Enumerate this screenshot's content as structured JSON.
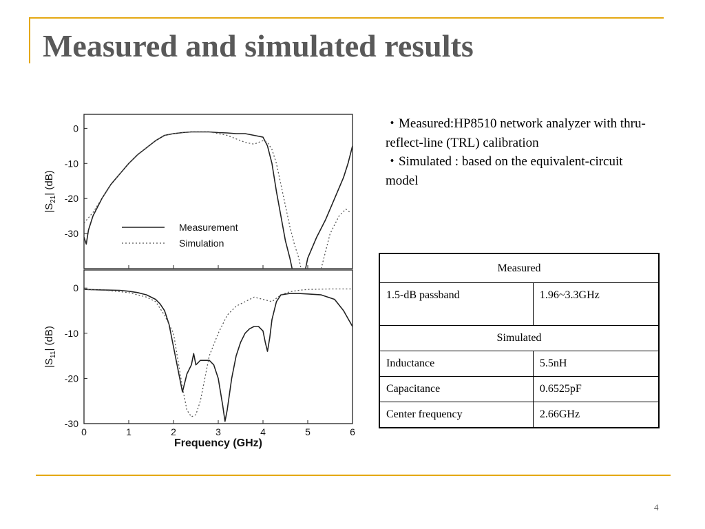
{
  "slide": {
    "title": "Measured and simulated results",
    "page_number": "4",
    "accent_color": "#e4a812"
  },
  "notes": [
    "・Measured:HP8510 network analyzer with thru-reflect-line (TRL) calibration",
    "・Simulated : based on the equivalent-circuit model"
  ],
  "table": {
    "measured_header": "Measured",
    "passband_label": "1.5-dB passband",
    "passband_value": "1.96~3.3GHz",
    "simulated_header": "Simulated",
    "rows": [
      {
        "label": "Inductance",
        "value": "5.5nH"
      },
      {
        "label": "Capacitance",
        "value": "0.6525pF"
      },
      {
        "label": "Center frequency",
        "value": "2.66GHz"
      }
    ]
  },
  "chart_data": [
    {
      "type": "line",
      "title": "",
      "xlabel": "",
      "ylabel": "|S21| (dB)",
      "xlim": [
        0,
        6
      ],
      "ylim": [
        -40,
        4
      ],
      "yticks": [
        0,
        -10,
        -20,
        -30
      ],
      "legend": {
        "position": "bottom-left",
        "entries": [
          "Measurement",
          "Simulation"
        ]
      },
      "series": [
        {
          "name": "Measurement",
          "style": "solid",
          "x": [
            0,
            0.05,
            0.1,
            0.2,
            0.4,
            0.6,
            0.8,
            1.0,
            1.2,
            1.4,
            1.6,
            1.8,
            2.0,
            2.2,
            2.4,
            2.6,
            2.8,
            3.0,
            3.2,
            3.4,
            3.6,
            3.8,
            4.0,
            4.1,
            4.2,
            4.3,
            4.4,
            4.5,
            4.6,
            4.65
          ],
          "y": [
            -31,
            -33,
            -29,
            -25,
            -20,
            -16,
            -13,
            -10,
            -7.5,
            -5.5,
            -3.5,
            -2,
            -1.5,
            -1.2,
            -1.0,
            -1.0,
            -1.0,
            -1.2,
            -1.3,
            -1.5,
            -1.5,
            -2,
            -2.5,
            -5,
            -10,
            -18,
            -25,
            -32,
            -37,
            -40
          ]
        },
        {
          "name": "Measurement",
          "style": "solid",
          "x": [
            4.95,
            5.0,
            5.2,
            5.4,
            5.6,
            5.8,
            5.9,
            6.0
          ],
          "y": [
            -40,
            -37,
            -31,
            -26,
            -20,
            -14,
            -10,
            -5
          ]
        },
        {
          "name": "Simulation",
          "style": "dotted",
          "x": [
            0,
            0.2,
            0.4,
            0.6,
            0.8,
            1.0,
            1.2,
            1.4,
            1.6,
            1.8,
            2.0,
            2.2,
            2.4,
            2.6,
            2.8,
            3.0,
            3.2,
            3.4,
            3.6,
            3.8,
            4.0,
            4.1,
            4.2,
            4.3,
            4.4,
            4.5,
            4.6,
            4.7,
            4.8,
            4.85
          ],
          "y": [
            -27,
            -24,
            -20,
            -16,
            -13,
            -10,
            -7.5,
            -5.5,
            -3.5,
            -2,
            -1.5,
            -1.2,
            -1.0,
            -1.0,
            -1.0,
            -1.5,
            -2,
            -3,
            -4,
            -4.5,
            -3.5,
            -4,
            -6,
            -10,
            -16,
            -22,
            -28,
            -33,
            -37,
            -40
          ]
        },
        {
          "name": "Simulation",
          "style": "dotted",
          "x": [
            5.3,
            5.5,
            5.7,
            5.85,
            5.95
          ],
          "y": [
            -40,
            -30,
            -25,
            -23,
            -24
          ]
        }
      ]
    },
    {
      "type": "line",
      "title": "",
      "xlabel": "Frequency (GHz)",
      "ylabel": "|S11| (dB)",
      "xlim": [
        0,
        6
      ],
      "xticks": [
        0,
        1,
        2,
        3,
        4,
        5,
        6
      ],
      "ylim": [
        -30,
        4
      ],
      "yticks": [
        0,
        -10,
        -20,
        -30
      ],
      "series": [
        {
          "name": "Measurement",
          "style": "solid",
          "x": [
            0,
            0.4,
            0.8,
            1.0,
            1.2,
            1.4,
            1.6,
            1.7,
            1.8,
            1.9,
            2.0,
            2.1,
            2.2,
            2.3,
            2.4,
            2.45,
            2.5,
            2.55,
            2.6,
            2.8,
            2.9,
            3.0,
            3.1,
            3.15,
            3.2,
            3.3,
            3.4,
            3.5,
            3.6,
            3.7,
            3.8,
            3.9,
            4.0,
            4.05,
            4.1,
            4.15,
            4.2,
            4.3,
            4.4,
            4.6,
            4.8,
            5.0,
            5.3,
            5.6,
            5.8,
            6.0
          ],
          "y": [
            -0.3,
            -0.4,
            -0.5,
            -0.7,
            -1.0,
            -1.5,
            -2.5,
            -3.5,
            -5,
            -8,
            -13,
            -18,
            -23,
            -19,
            -17,
            -14.5,
            -17,
            -16.5,
            -16,
            -16,
            -17,
            -20,
            -26,
            -29.5,
            -27,
            -20,
            -15,
            -12,
            -10,
            -9,
            -8.5,
            -8.5,
            -9.5,
            -12,
            -14,
            -11,
            -7,
            -3,
            -1.5,
            -1.2,
            -1.2,
            -1.3,
            -1.5,
            -2.5,
            -5,
            -8.5
          ]
        },
        {
          "name": "Simulation",
          "style": "dotted",
          "x": [
            0,
            0.5,
            1.0,
            1.4,
            1.6,
            1.8,
            2.0,
            2.2,
            2.3,
            2.4,
            2.5,
            2.6,
            2.7,
            2.8,
            3.0,
            3.2,
            3.4,
            3.6,
            3.8,
            4.0,
            4.2,
            4.4,
            4.6,
            4.8,
            5.0,
            5.5,
            6.0
          ],
          "y": [
            -0.3,
            -0.5,
            -1,
            -2,
            -3,
            -6,
            -10,
            -22,
            -27,
            -28.5,
            -28,
            -25,
            -20,
            -15,
            -10,
            -6,
            -4,
            -3,
            -2,
            -2.5,
            -3,
            -1.5,
            -0.8,
            -0.5,
            -0.3,
            -0.2,
            -0.2
          ]
        }
      ]
    }
  ]
}
